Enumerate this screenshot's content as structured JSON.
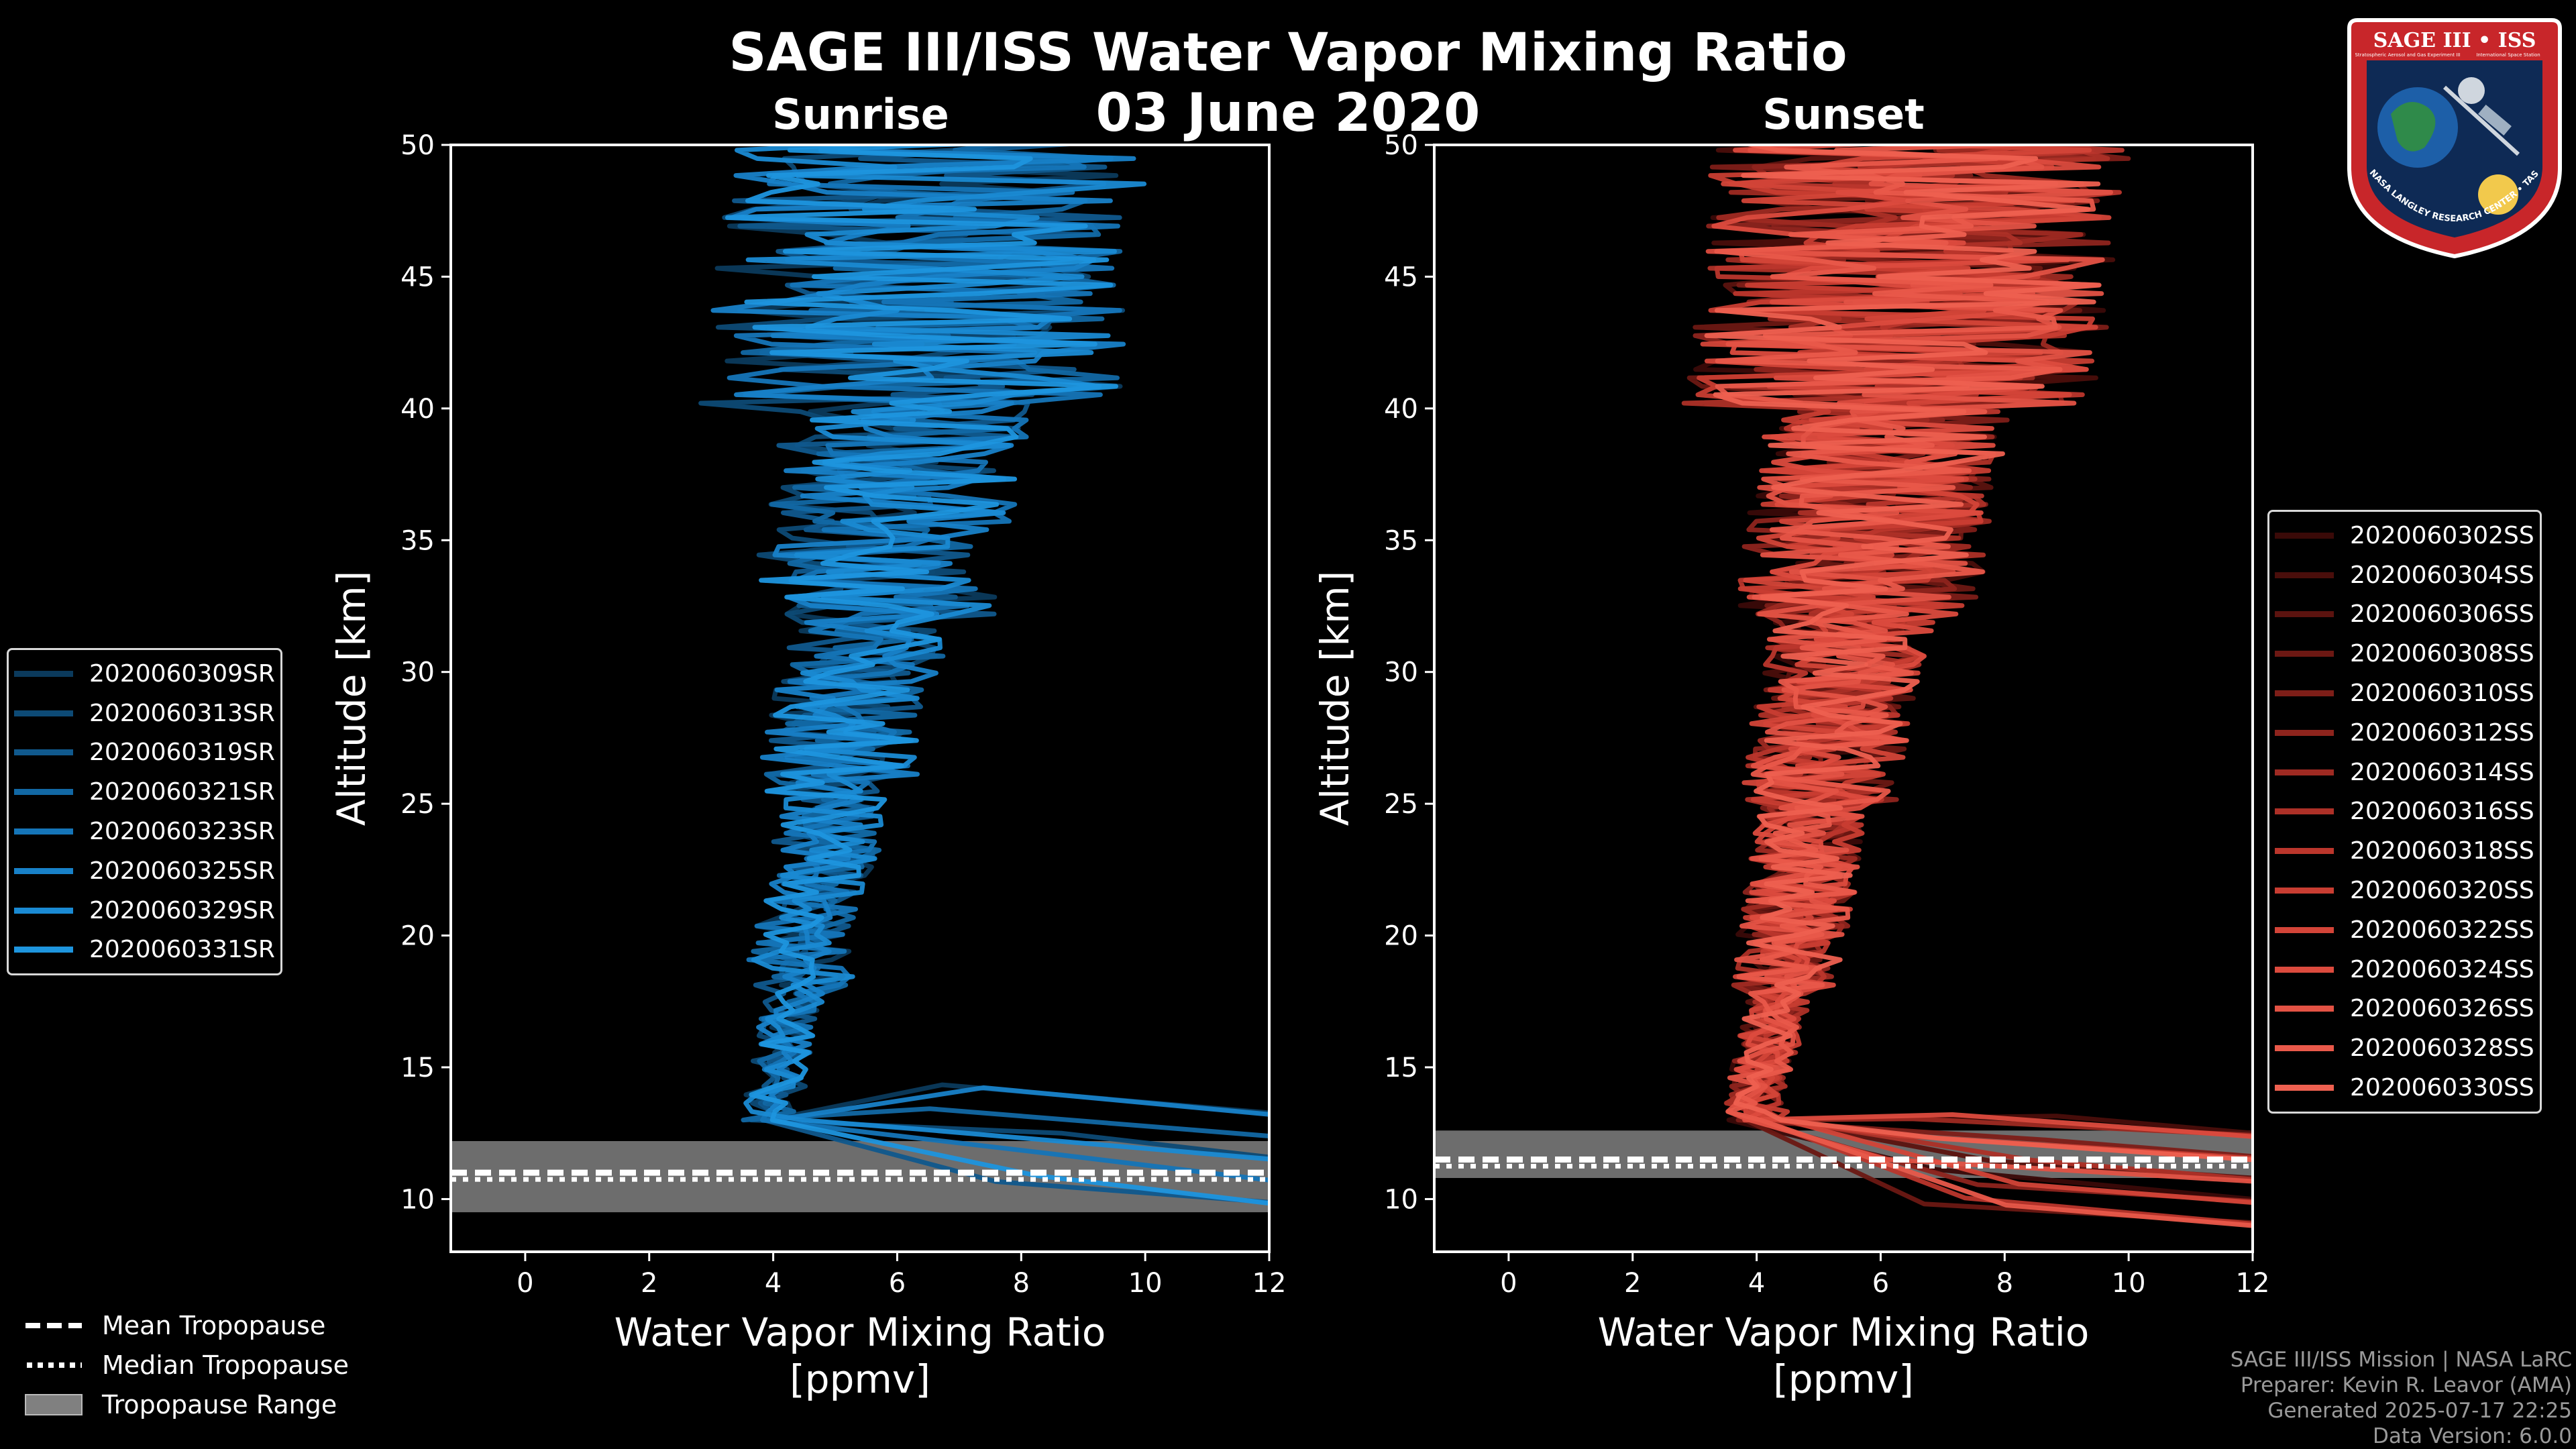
{
  "title": "SAGE III/ISS Water Vapor Mixing Ratio",
  "date": "03 June 2020",
  "colors": {
    "sunrise": "#1b8fd6",
    "sunset": "#e85a48",
    "tropo_fill": "#808080",
    "axis": "#ffffff"
  },
  "chart_data": [
    {
      "type": "line",
      "panel": "Sunrise",
      "title": "Sunrise",
      "xlabel": "Water Vapor Mixing Ratio\n[ppmv]",
      "ylabel": "Altitude [km]",
      "xlim": [
        -1.2,
        12
      ],
      "ylim": [
        8,
        50
      ],
      "xticks": [
        0,
        2,
        4,
        6,
        8,
        10,
        12
      ],
      "yticks": [
        10,
        15,
        20,
        25,
        30,
        35,
        40,
        45,
        50
      ],
      "tropopause": {
        "mean": 11.0,
        "median": 10.9,
        "range": [
          9.5,
          12.2
        ]
      },
      "series": [
        {
          "name": "2020060309SR",
          "color": "#0b3a5c"
        },
        {
          "name": "2020060313SR",
          "color": "#0d4a75"
        },
        {
          "name": "2020060319SR",
          "color": "#10598d"
        },
        {
          "name": "2020060321SR",
          "color": "#1268a4"
        },
        {
          "name": "2020060323SR",
          "color": "#1575b8"
        },
        {
          "name": "2020060325SR",
          "color": "#1881c8"
        },
        {
          "name": "2020060329SR",
          "color": "#1a8ad3"
        },
        {
          "name": "2020060331SR",
          "color": "#1e95de"
        }
      ]
    },
    {
      "type": "line",
      "panel": "Sunset",
      "title": "Sunset",
      "xlabel": "Water Vapor Mixing Ratio\n[ppmv]",
      "ylabel": "Altitude [km]",
      "xlim": [
        -1.2,
        12
      ],
      "ylim": [
        8,
        50
      ],
      "xticks": [
        0,
        2,
        4,
        6,
        8,
        10,
        12
      ],
      "yticks": [
        10,
        15,
        20,
        25,
        30,
        35,
        40,
        45,
        50
      ],
      "tropopause": {
        "mean": 11.5,
        "median": 11.4,
        "range": [
          10.8,
          12.6
        ]
      },
      "series": [
        {
          "name": "2020060302SS",
          "color": "#3a0a08"
        },
        {
          "name": "2020060304SS",
          "color": "#4a0e0b"
        },
        {
          "name": "2020060306SS",
          "color": "#5b130f"
        },
        {
          "name": "2020060308SS",
          "color": "#6c1813"
        },
        {
          "name": "2020060310SS",
          "color": "#7d1e18"
        },
        {
          "name": "2020060312SS",
          "color": "#8e241d"
        },
        {
          "name": "2020060314SS",
          "color": "#9e2a22"
        },
        {
          "name": "2020060316SS",
          "color": "#ad3027"
        },
        {
          "name": "2020060318SS",
          "color": "#bb362c"
        },
        {
          "name": "2020060320SS",
          "color": "#c83d32"
        },
        {
          "name": "2020060322SS",
          "color": "#d34438"
        },
        {
          "name": "2020060324SS",
          "color": "#dc4b3e"
        },
        {
          "name": "2020060326SS",
          "color": "#e35244"
        },
        {
          "name": "2020060328SS",
          "color": "#e9594a"
        },
        {
          "name": "2020060330SS",
          "color": "#ee6050"
        }
      ]
    }
  ],
  "tropopause_legend": [
    {
      "label": "Mean Tropopause",
      "style": "dashed"
    },
    {
      "label": "Median Tropopause",
      "style": "dotted"
    },
    {
      "label": "Tropopause Range",
      "style": "fill"
    }
  ],
  "footer": [
    "SAGE III/ISS Mission | NASA LaRC",
    "Preparer: Kevin R. Leavor (AMA)",
    "Generated 2025-07-17 22:25",
    "Data Version: 6.0.0"
  ],
  "logo": {
    "text_top": "SAGE III • ISS",
    "sub_left": "Stratospheric Aerosol and Gas Experiment III",
    "sub_right": "International Space Station",
    "ring_text": "BALL • NASA LANGLEY RESEARCH CENTER • TAS-I • ESA"
  }
}
